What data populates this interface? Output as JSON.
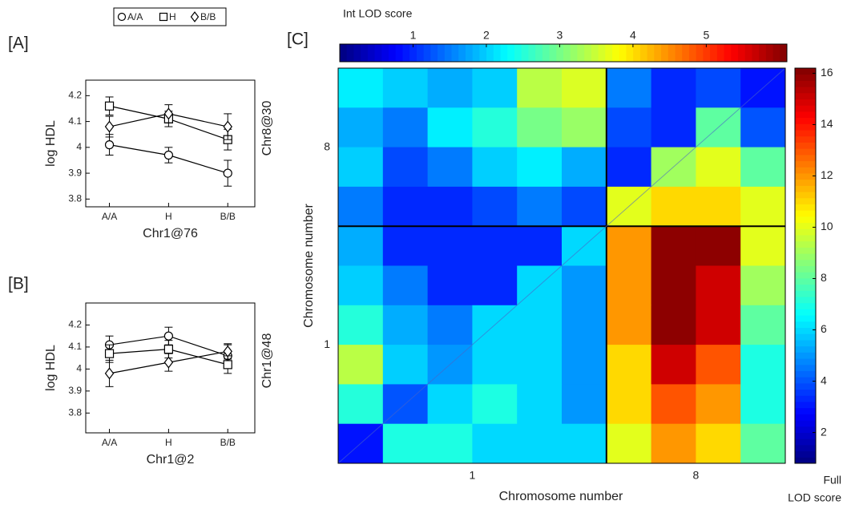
{
  "chart_data": [
    {
      "type": "line",
      "panel": "[A]",
      "xlabel": "Chr1@76",
      "ylabel": "log HDL",
      "side_label": "Chr8@30",
      "categories": [
        "A/A",
        "H",
        "B/B"
      ],
      "ylim": [
        3.77,
        4.26
      ],
      "yticks": [
        3.8,
        3.9,
        4,
        4.1,
        4.2
      ],
      "series": [
        {
          "name": "A/A",
          "marker": "circle",
          "values": [
            4.01,
            3.97,
            3.9
          ],
          "errors": [
            0.04,
            0.03,
            0.05
          ]
        },
        {
          "name": "H",
          "marker": "square",
          "values": [
            4.16,
            4.11,
            4.03
          ],
          "errors": [
            0.035,
            0.03,
            0.04
          ]
        },
        {
          "name": "B/B",
          "marker": "diamond",
          "values": [
            4.08,
            4.13,
            4.08
          ],
          "errors": [
            0.04,
            0.035,
            0.05
          ]
        }
      ]
    },
    {
      "type": "line",
      "panel": "[B]",
      "xlabel": "Chr1@2",
      "ylabel": "log HDL",
      "side_label": "Chr1@48",
      "categories": [
        "A/A",
        "H",
        "B/B"
      ],
      "ylim": [
        3.71,
        4.3
      ],
      "yticks": [
        3.8,
        3.9,
        4,
        4.1,
        4.2
      ],
      "series": [
        {
          "marker": "circle",
          "values": [
            4.11,
            4.15,
            4.06
          ],
          "errors": [
            0.04,
            0.04,
            0.05
          ]
        },
        {
          "marker": "square",
          "values": [
            4.07,
            4.09,
            4.02
          ],
          "errors": [
            0.04,
            0.04,
            0.04
          ]
        },
        {
          "marker": "diamond",
          "values": [
            3.98,
            4.03,
            4.08
          ],
          "errors": [
            0.06,
            0.04,
            0.035
          ]
        }
      ]
    },
    {
      "type": "heatmap",
      "panel": "[C]",
      "xlabel": "Chromosome number",
      "ylabel": "Chromosome number",
      "xticks": [
        "1",
        "8"
      ],
      "yticks": [
        "8",
        "1"
      ],
      "colormap": "jet",
      "int_title": "Int LOD score",
      "int_clim": [
        0,
        6.1
      ],
      "int_ticks": [
        1,
        2,
        3,
        4,
        5
      ],
      "full_title": [
        "Full",
        "LOD score"
      ],
      "full_clim": [
        0.8,
        16.2
      ],
      "full_ticks": [
        2,
        4,
        6,
        8,
        10,
        12,
        14,
        16
      ],
      "int_lod": [
        [
          2.2,
          2.0,
          1.8,
          2.0,
          3.4,
          3.6,
          1.5,
          1.0,
          1.2,
          null
        ],
        [
          1.8,
          1.5,
          2.2,
          2.5,
          3.0,
          3.2,
          1.2,
          1.0,
          null,
          null
        ],
        [
          2.0,
          1.2,
          1.5,
          2.0,
          2.2,
          1.8,
          1.0,
          null,
          null,
          null
        ],
        [
          1.5,
          1.0,
          1.0,
          1.2,
          1.5,
          1.2,
          null,
          null,
          null,
          null
        ],
        [
          1.8,
          1.0,
          1.0,
          1.0,
          1.0,
          null,
          null,
          null,
          null,
          null
        ],
        [
          2.0,
          1.5,
          1.0,
          1.0,
          null,
          null,
          null,
          null,
          null,
          null
        ],
        [
          2.5,
          1.8,
          1.5,
          null,
          null,
          null,
          null,
          null,
          null,
          null
        ],
        [
          3.4,
          2.0,
          null,
          null,
          null,
          null,
          null,
          null,
          null,
          null
        ],
        [
          2.5,
          null,
          null,
          null,
          null,
          null,
          null,
          null,
          null,
          null
        ],
        [
          null,
          null,
          null,
          null,
          null,
          null,
          null,
          null,
          null,
          null
        ]
      ],
      "full_lod": [
        [
          null,
          null,
          null,
          null,
          null,
          null,
          null,
          null,
          null,
          3
        ],
        [
          null,
          null,
          null,
          null,
          null,
          null,
          null,
          null,
          8,
          4
        ],
        [
          null,
          null,
          null,
          null,
          null,
          null,
          null,
          9,
          10,
          8
        ],
        [
          null,
          null,
          null,
          null,
          null,
          null,
          10,
          11,
          11,
          10
        ],
        [
          null,
          null,
          null,
          null,
          null,
          6,
          12,
          16,
          16,
          10
        ],
        [
          null,
          null,
          null,
          null,
          6,
          5,
          12,
          16,
          15,
          9
        ],
        [
          null,
          null,
          null,
          6,
          6,
          5,
          12,
          16,
          15,
          8
        ],
        [
          null,
          null,
          5,
          6,
          6,
          5,
          11,
          15,
          13,
          7
        ],
        [
          null,
          4,
          6,
          7,
          6,
          5,
          11,
          13,
          12,
          7
        ],
        [
          3,
          7,
          7,
          6,
          6,
          6,
          10,
          12,
          11,
          8
        ]
      ]
    }
  ]
}
